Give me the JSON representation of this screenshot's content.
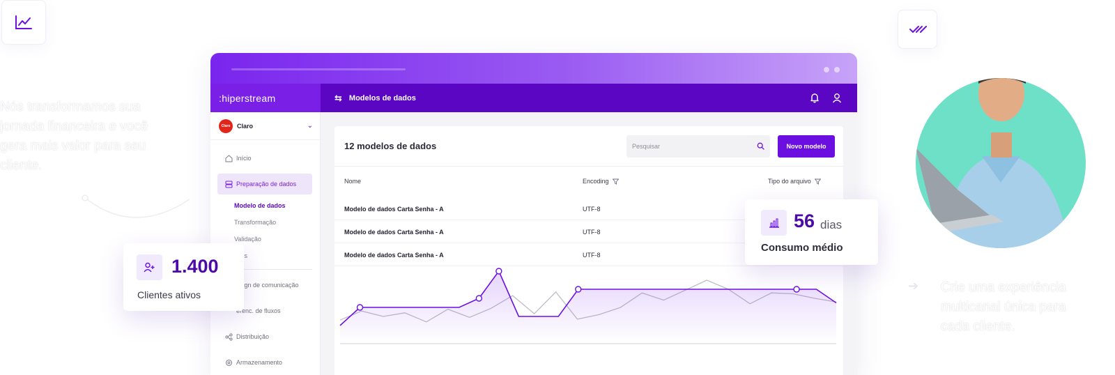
{
  "hero": {
    "left_text": "Nós transformamos sua jornada financeira e você gera mais valor para seu cliente.",
    "right_text": "Crie uma experiência multicanal única para cada cliente."
  },
  "decor_icons": {
    "top_left": "line-chart-icon",
    "top_right": "double-check-icon"
  },
  "app": {
    "brand": ":hiperstream",
    "page_title": "Modelos de dados",
    "client": {
      "logo": "Claro",
      "name": "Claro"
    },
    "nav": {
      "inicio": "Início",
      "preparacao": "Preparação de dados",
      "sub": {
        "modelo": "Modelo de dados",
        "transformacao": "Transformação",
        "validacao": "Validação",
        "acoes": "ções"
      },
      "design": "esign de comunicação",
      "gerenc": "erenc. de fluxos",
      "distribuicao": "Distribuição",
      "armazenamento": "Armazenamento"
    },
    "card": {
      "title": "12 modelos de dados",
      "search_placeholder": "Pesquisar",
      "new_button": "Novo modelo",
      "columns": {
        "name": "Nome",
        "encoding": "Encoding",
        "filetype": "Tipo do arquivo"
      },
      "rows": [
        {
          "name": "Modelo de dados Carta Senha - A",
          "encoding": "UTF-8"
        },
        {
          "name": "Modelo de dados Carta Senha - A",
          "encoding": "UTF-8"
        },
        {
          "name": "Modelo de dados Carta Senha - A",
          "encoding": "UTF-8"
        }
      ]
    }
  },
  "stats": {
    "clients": {
      "value": "1.400",
      "label": "Clientes ativos"
    },
    "consumption": {
      "value": "56",
      "unit": "dias",
      "label": "Consumo médio"
    }
  },
  "chart_data": {
    "type": "line",
    "series": [
      {
        "values": [
          2,
          4,
          4,
          4,
          4,
          4,
          4,
          5,
          8,
          3,
          3,
          3,
          6,
          6,
          6,
          6,
          6,
          6,
          6,
          6,
          6,
          6,
          6,
          6,
          6,
          4.5
        ],
        "markers": [
          1,
          7,
          8,
          12,
          23
        ]
      },
      {
        "values": [
          2.6,
          3.6,
          3,
          3.4,
          2.4,
          3.8,
          2.9,
          3.9,
          5.3,
          3.3,
          5.7,
          2.7,
          3.2,
          4,
          5.6,
          4.8,
          5.9,
          7,
          6,
          4.4,
          5.6,
          5.5,
          5,
          4.6
        ]
      }
    ],
    "colors": {
      "primary": "#6b10e2",
      "secondary": "#bdbdc6"
    },
    "grid": false
  }
}
